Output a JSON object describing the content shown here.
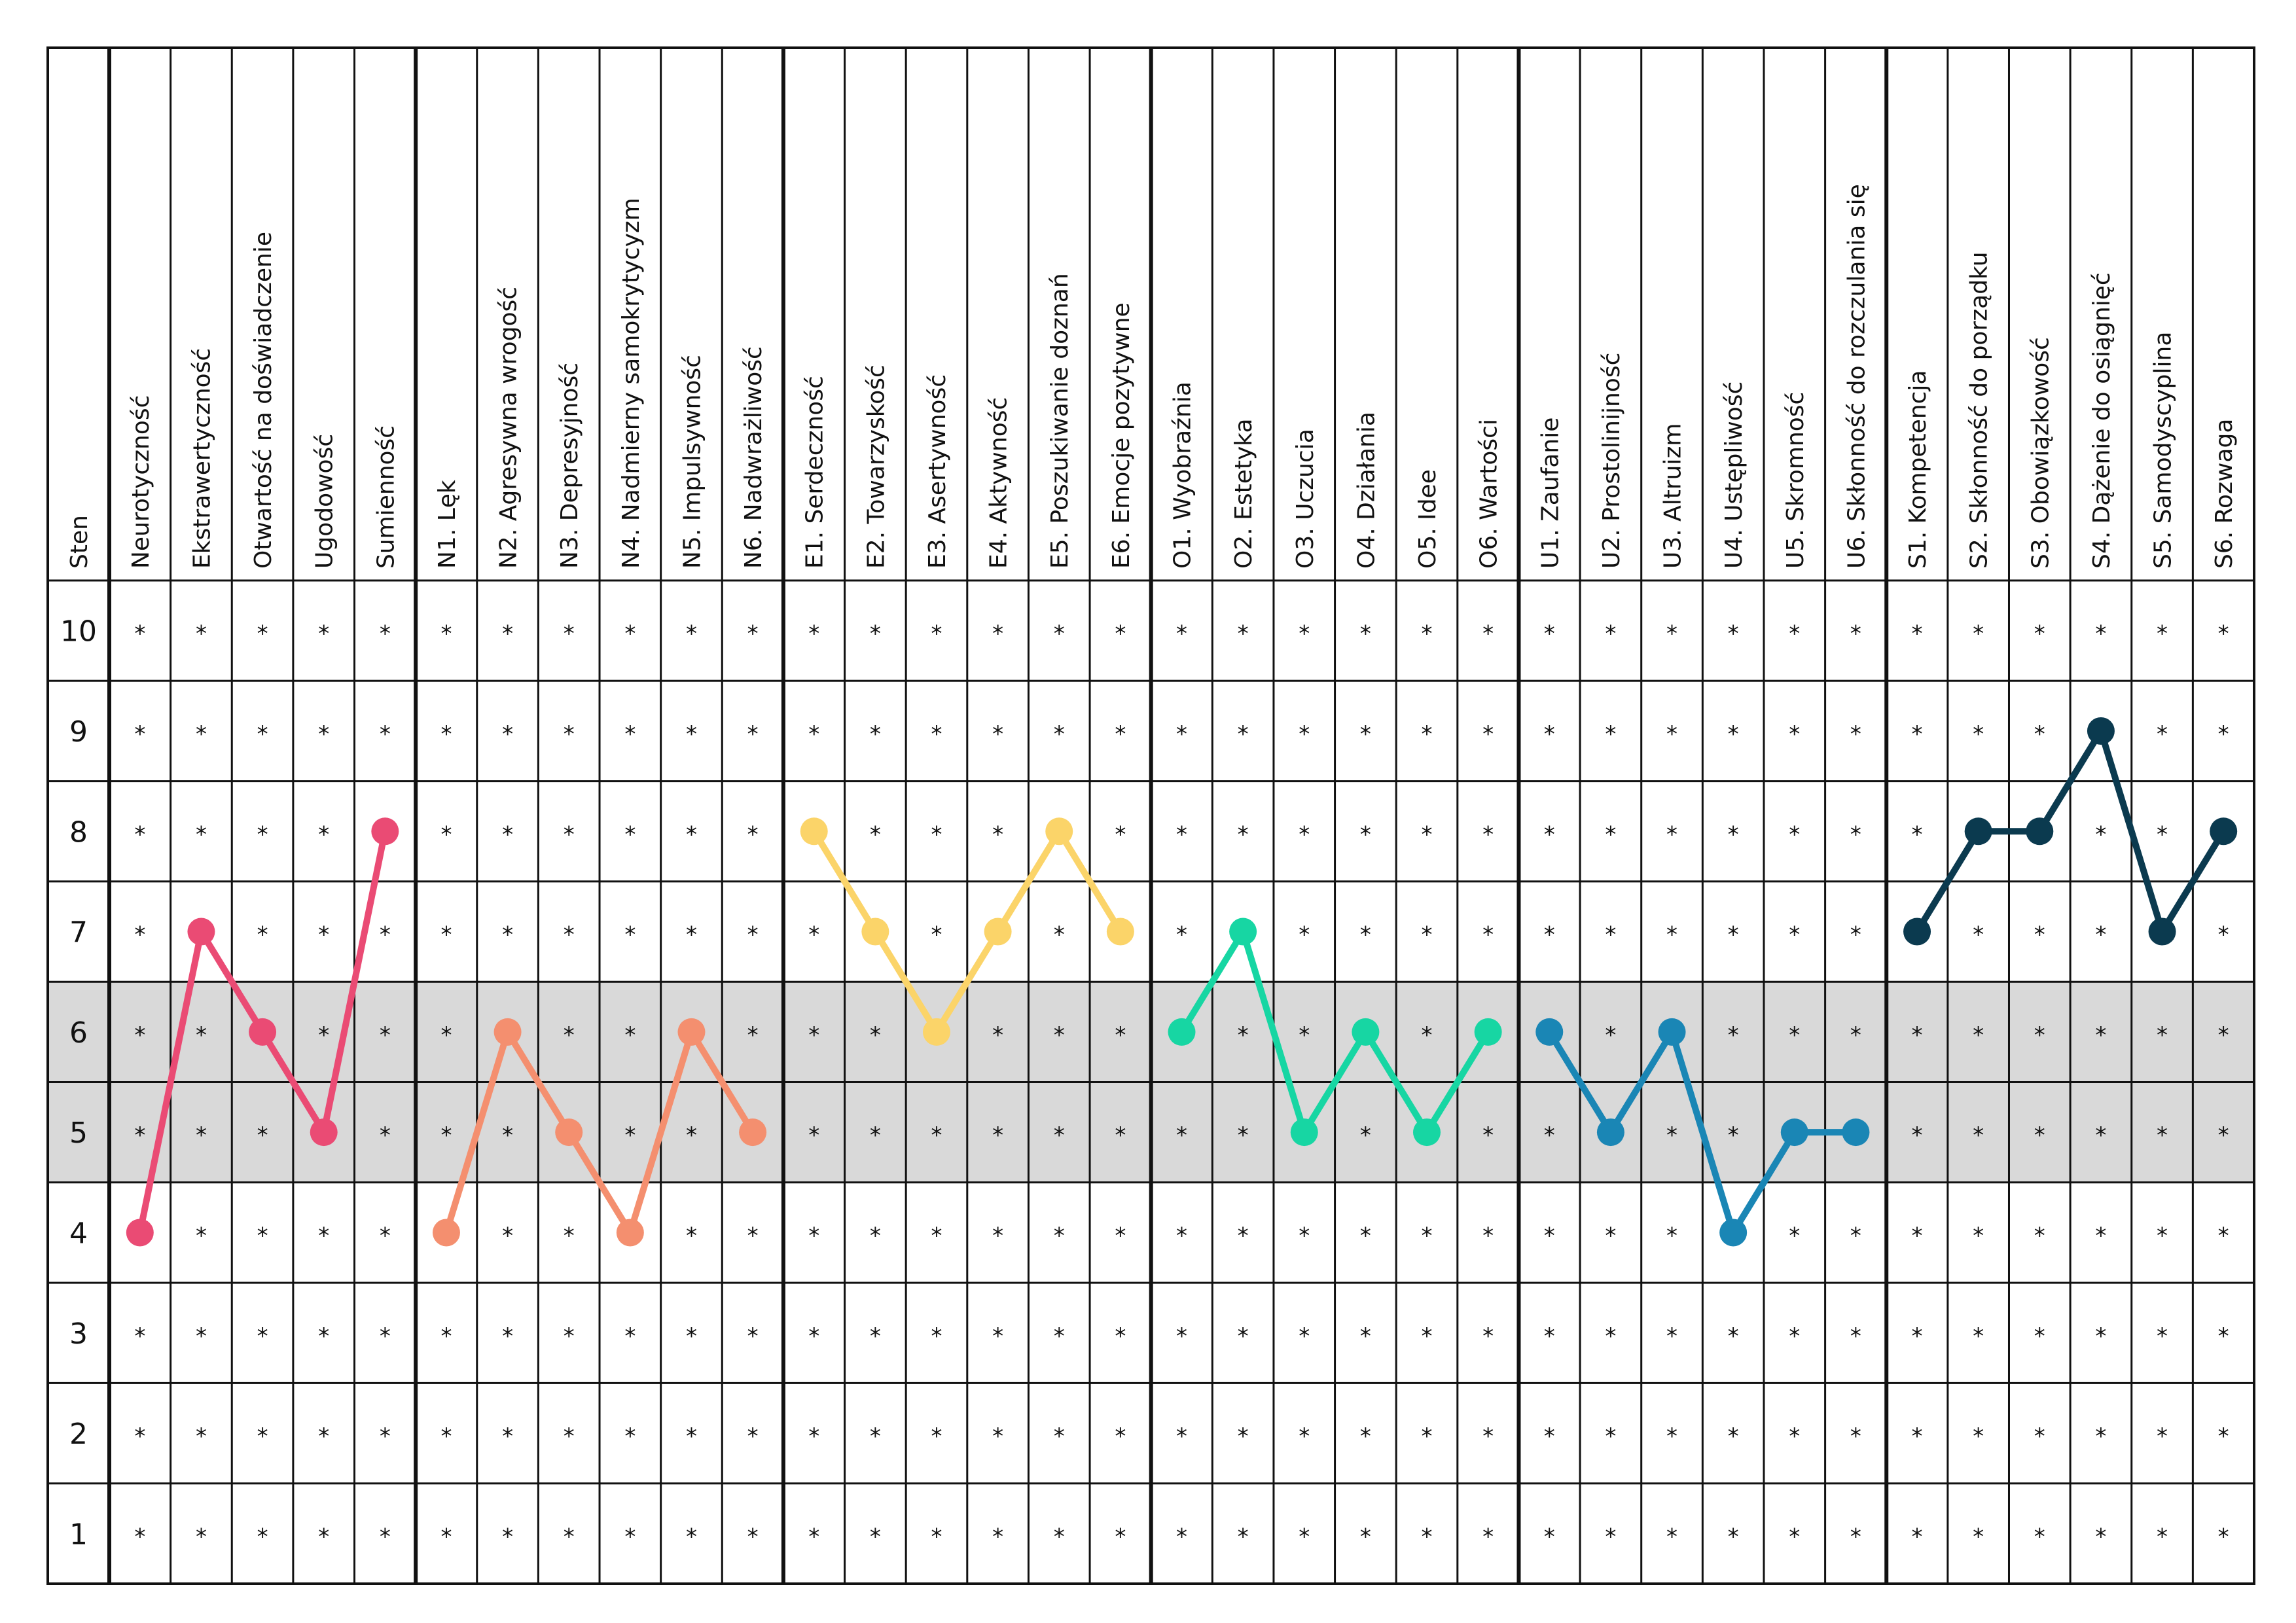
{
  "chart_data": {
    "type": "line",
    "axis_label": "Sten",
    "y_ticks": [
      "10",
      "9",
      "8",
      "7",
      "6",
      "5",
      "4",
      "3",
      "2",
      "1"
    ],
    "ylim": [
      1,
      10
    ],
    "highlight_band": [
      5,
      6
    ],
    "highlight_color": "#d9d9d9",
    "cell_marker": "*",
    "grid": true,
    "columns": [
      "Neurotyczność",
      "Ekstrawertyczność",
      "Otwartość na doświadczenie",
      "Ugodowość",
      "Sumienność",
      "N1. Lęk",
      "N2. Agresywna wrogość",
      "N3. Depresyjność",
      "N4. Nadmierny samokrytycyzm",
      "N5. Impulsywność",
      "N6. Nadwrażliwość",
      "E1. Serdeczność",
      "E2. Towarzyskość",
      "E3. Asertywność",
      "E4. Aktywność",
      "E5. Poszukiwanie doznań",
      "E6. Emocje pozytywne",
      "O1. Wyobraźnia",
      "O2. Estetyka",
      "O3. Uczucia",
      "O4. Działania",
      "O5. Idee",
      "O6. Wartości",
      "U1. Zaufanie",
      "U2. Prostolinijność",
      "U3. Altruizm",
      "U4. Ustępliwość",
      "U5. Skromność",
      "U6. Skłonność do rozczulania się",
      "S1. Kompetencja",
      "S2. Skłonność do porządku",
      "S3. Obowiązkowość",
      "S4. Dążenie do osiągnięć",
      "S5. Samodyscyplina",
      "S6. Rozwaga"
    ],
    "group_starts": [
      0,
      5,
      11,
      17,
      23,
      29
    ],
    "series": [
      {
        "start_column": 0,
        "values": [
          4,
          7,
          6,
          5,
          8
        ],
        "color": "#ea4b74"
      },
      {
        "start_column": 5,
        "values": [
          4,
          6,
          5,
          4,
          6,
          5
        ],
        "color": "#f48f6f"
      },
      {
        "start_column": 11,
        "values": [
          8,
          7,
          6,
          7,
          8,
          7
        ],
        "color": "#fbd469"
      },
      {
        "start_column": 17,
        "values": [
          6,
          7,
          5,
          6,
          5,
          6
        ],
        "color": "#17d6a3"
      },
      {
        "start_column": 23,
        "values": [
          6,
          5,
          6,
          4,
          5,
          5
        ],
        "color": "#1a86b5"
      },
      {
        "start_column": 29,
        "values": [
          7,
          8,
          8,
          9,
          7,
          8
        ],
        "color": "#0b3a4f"
      }
    ]
  }
}
